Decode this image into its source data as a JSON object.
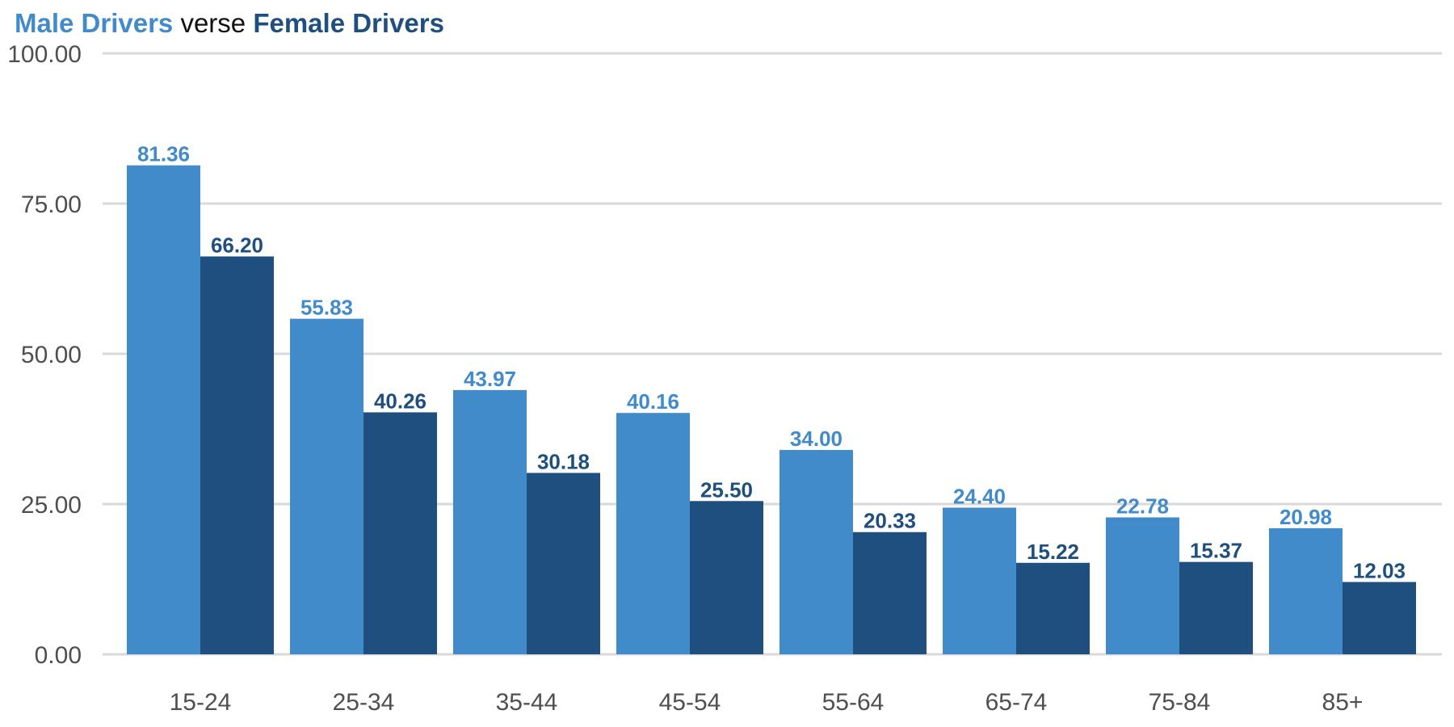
{
  "title": {
    "series_a": "Male Drivers",
    "connector": " verse ",
    "series_b": "Female Drivers"
  },
  "colors": {
    "male": "#428bcb",
    "female": "#1f4f7f",
    "grid": "#d9d9d9",
    "axis_text": "#4f4f4f"
  },
  "chart_data": {
    "type": "bar",
    "categories": [
      "15-24",
      "25-34",
      "35-44",
      "45-54",
      "55-64",
      "65-74",
      "75-84",
      "85+"
    ],
    "series": [
      {
        "name": "Male Drivers",
        "values": [
          81.36,
          55.83,
          43.97,
          40.16,
          34.0,
          24.4,
          22.78,
          20.98
        ],
        "labels": [
          "81.36",
          "55.83",
          "43.97",
          "40.16",
          "34.00",
          "24.40",
          "22.78",
          "20.98"
        ]
      },
      {
        "name": "Female Drivers",
        "values": [
          66.2,
          40.26,
          30.18,
          25.5,
          20.33,
          15.22,
          15.37,
          12.03
        ],
        "labels": [
          "66.20",
          "40.26",
          "30.18",
          "25.50",
          "20.33",
          "15.22",
          "15.37",
          "12.03"
        ]
      }
    ],
    "title": "Male Drivers verse Female Drivers",
    "xlabel": "",
    "ylabel": "",
    "ylim": [
      0,
      100
    ],
    "yticks": [
      0,
      25,
      50,
      75,
      100
    ],
    "ytick_labels": [
      "0.00",
      "25.00",
      "50.00",
      "75.00",
      "100.00"
    ],
    "grid": true,
    "legend": "none"
  }
}
